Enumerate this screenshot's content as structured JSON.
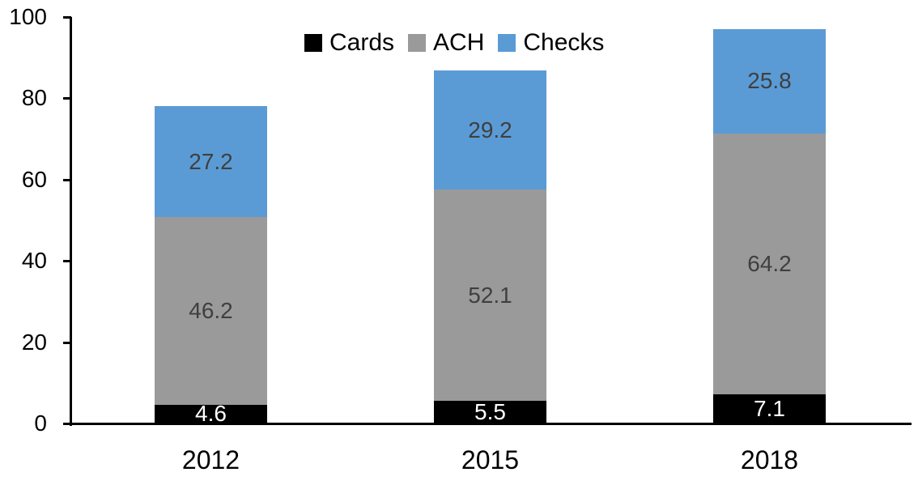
{
  "chart_data": {
    "type": "bar",
    "stacked": true,
    "title": "",
    "xlabel": "",
    "ylabel": "",
    "categories": [
      "2012",
      "2015",
      "2018"
    ],
    "series": [
      {
        "name": "Cards",
        "color": "#000000",
        "label_color": "#FFFFFF",
        "values": [
          4.6,
          5.5,
          7.1
        ]
      },
      {
        "name": "ACH",
        "color": "#9A9A9A",
        "label_color": "#3F3F3F",
        "values": [
          46.2,
          52.1,
          64.2
        ]
      },
      {
        "name": "Checks",
        "color": "#5B9BD5",
        "label_color": "#3F3F3F",
        "values": [
          27.2,
          29.2,
          25.8
        ]
      }
    ],
    "y_axis": {
      "min": 0,
      "max": 100,
      "ticks": [
        0,
        20,
        40,
        60,
        80,
        100
      ]
    },
    "ylim": [
      0,
      100
    ],
    "grid": false,
    "legend_position": "top",
    "axis_color": "#000000",
    "background_color": "#FFFFFF"
  }
}
